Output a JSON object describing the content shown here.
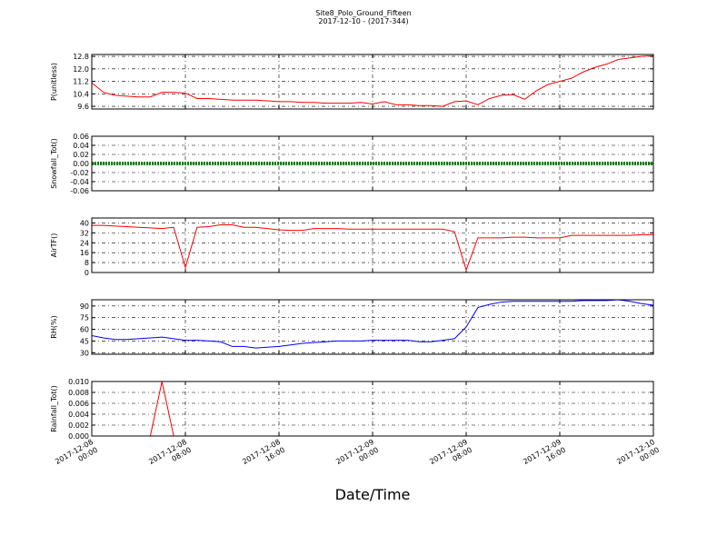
{
  "chart_data": [
    {
      "type": "line",
      "title": "Site8_Polo_Ground_Fifteen",
      "subtitle": "2017-12-10 - (2017-344)",
      "ylabel": "P(unitless)",
      "color": "#ff0000",
      "x": [
        "2017-12-08 00:00",
        "2017-12-08 01:00",
        "2017-12-08 02:00",
        "2017-12-08 03:00",
        "2017-12-08 04:00",
        "2017-12-08 05:00",
        "2017-12-08 06:00",
        "2017-12-08 07:00",
        "2017-12-08 08:00",
        "2017-12-08 09:00",
        "2017-12-08 10:00",
        "2017-12-08 11:00",
        "2017-12-08 12:00",
        "2017-12-08 13:00",
        "2017-12-08 14:00",
        "2017-12-08 15:00",
        "2017-12-08 16:00",
        "2017-12-08 17:00",
        "2017-12-08 18:00",
        "2017-12-08 19:00",
        "2017-12-08 20:00",
        "2017-12-08 21:00",
        "2017-12-08 22:00",
        "2017-12-08 23:00",
        "2017-12-09 00:00",
        "2017-12-09 01:00",
        "2017-12-09 02:00",
        "2017-12-09 03:00",
        "2017-12-09 04:00",
        "2017-12-09 05:00",
        "2017-12-09 06:00",
        "2017-12-09 07:00",
        "2017-12-09 08:00",
        "2017-12-09 09:00",
        "2017-12-09 10:00",
        "2017-12-09 11:00",
        "2017-12-09 12:00",
        "2017-12-09 13:00",
        "2017-12-09 14:00",
        "2017-12-09 15:00",
        "2017-12-09 16:00",
        "2017-12-09 17:00",
        "2017-12-09 18:00",
        "2017-12-09 19:00",
        "2017-12-09 20:00",
        "2017-12-09 21:00",
        "2017-12-09 22:00",
        "2017-12-09 23:00",
        "2017-12-10 00:00"
      ],
      "values": [
        11.1,
        10.5,
        10.3,
        10.25,
        10.2,
        10.2,
        10.5,
        10.5,
        10.45,
        10.1,
        10.1,
        10.05,
        10.0,
        10.0,
        10.0,
        9.95,
        9.9,
        9.9,
        9.85,
        9.85,
        9.8,
        9.8,
        9.8,
        9.85,
        9.75,
        9.9,
        9.7,
        9.7,
        9.65,
        9.65,
        9.6,
        9.9,
        9.95,
        9.7,
        10.1,
        10.3,
        10.35,
        10.05,
        10.6,
        11.0,
        11.2,
        11.4,
        11.8,
        12.1,
        12.3,
        12.6,
        12.7,
        12.8,
        12.85
      ],
      "ylim": [
        9.43,
        12.92
      ],
      "yticks": [
        9.6,
        10.4,
        11.2,
        {
          "value": 12,
          "label": "12.0"
        },
        12.8
      ],
      "grid": true
    },
    {
      "type": "line",
      "ylabel": "Snowfall_Tot()",
      "color": "#008000",
      "x": [
        "2017-12-08 00:00",
        "2017-12-08 01:00",
        "2017-12-08 02:00",
        "2017-12-08 03:00",
        "2017-12-08 04:00",
        "2017-12-08 05:00",
        "2017-12-08 06:00",
        "2017-12-08 07:00",
        "2017-12-08 08:00",
        "2017-12-08 09:00",
        "2017-12-08 10:00",
        "2017-12-08 11:00",
        "2017-12-08 12:00",
        "2017-12-08 13:00",
        "2017-12-08 14:00",
        "2017-12-08 15:00",
        "2017-12-08 16:00",
        "2017-12-08 17:00",
        "2017-12-08 18:00",
        "2017-12-08 19:00",
        "2017-12-08 20:00",
        "2017-12-08 21:00",
        "2017-12-08 22:00",
        "2017-12-08 23:00",
        "2017-12-09 00:00",
        "2017-12-09 01:00",
        "2017-12-09 02:00",
        "2017-12-09 03:00",
        "2017-12-09 04:00",
        "2017-12-09 05:00",
        "2017-12-09 06:00",
        "2017-12-09 07:00",
        "2017-12-09 08:00",
        "2017-12-09 09:00",
        "2017-12-09 10:00",
        "2017-12-09 11:00",
        "2017-12-09 12:00",
        "2017-12-09 13:00",
        "2017-12-09 14:00",
        "2017-12-09 15:00",
        "2017-12-09 16:00",
        "2017-12-09 17:00",
        "2017-12-09 18:00",
        "2017-12-09 19:00",
        "2017-12-09 20:00",
        "2017-12-09 21:00",
        "2017-12-09 22:00",
        "2017-12-09 23:00",
        "2017-12-10 00:00"
      ],
      "values": [
        0,
        0,
        0,
        0,
        0,
        0,
        0,
        0,
        0,
        0,
        0,
        0,
        0,
        0,
        0,
        0,
        0,
        0,
        0,
        0,
        0,
        0,
        0,
        0,
        0,
        0,
        0,
        0,
        0,
        0,
        0,
        0,
        0,
        0,
        0,
        0,
        0,
        0,
        0,
        0,
        0,
        0,
        0,
        0,
        0,
        0,
        0,
        0,
        0
      ],
      "ylim": [
        -0.06,
        0.06
      ],
      "yticks": [
        -0.06,
        -0.04,
        -0.02,
        {
          "value": 0,
          "label": "0.00"
        },
        0.02,
        0.04,
        0.06
      ],
      "grid": true
    },
    {
      "type": "line",
      "ylabel": "AirTF()",
      "color": "#ff0000",
      "x": [
        "2017-12-08 00:00",
        "2017-12-08 01:00",
        "2017-12-08 02:00",
        "2017-12-08 03:00",
        "2017-12-08 04:00",
        "2017-12-08 05:00",
        "2017-12-08 06:00",
        "2017-12-08 07:00",
        "2017-12-08 08:00",
        "2017-12-08 09:00",
        "2017-12-08 10:00",
        "2017-12-08 11:00",
        "2017-12-08 12:00",
        "2017-12-08 13:00",
        "2017-12-08 14:00",
        "2017-12-08 15:00",
        "2017-12-08 16:00",
        "2017-12-08 17:00",
        "2017-12-08 18:00",
        "2017-12-08 19:00",
        "2017-12-08 20:00",
        "2017-12-08 21:00",
        "2017-12-08 22:00",
        "2017-12-08 23:00",
        "2017-12-09 00:00",
        "2017-12-09 01:00",
        "2017-12-09 02:00",
        "2017-12-09 03:00",
        "2017-12-09 04:00",
        "2017-12-09 05:00",
        "2017-12-09 06:00",
        "2017-12-09 07:00",
        "2017-12-09 08:00",
        "2017-12-09 09:00",
        "2017-12-09 10:00",
        "2017-12-09 11:00",
        "2017-12-09 12:00",
        "2017-12-09 13:00",
        "2017-12-09 14:00",
        "2017-12-09 15:00",
        "2017-12-09 16:00",
        "2017-12-09 17:00",
        "2017-12-09 18:00",
        "2017-12-09 19:00",
        "2017-12-09 20:00",
        "2017-12-09 21:00",
        "2017-12-09 22:00",
        "2017-12-09 23:00",
        "2017-12-10 00:00"
      ],
      "values": [
        38,
        38,
        37.5,
        37,
        36.5,
        36,
        35.5,
        36.5,
        4,
        36.5,
        37,
        38.5,
        38.5,
        36.5,
        36.5,
        35.5,
        34.5,
        34,
        34,
        35.5,
        35.5,
        35.5,
        35,
        35,
        35,
        35,
        35,
        35,
        35,
        35,
        35,
        33,
        2,
        28,
        28,
        28,
        28.5,
        28.5,
        28,
        28,
        28,
        30,
        30,
        30,
        30,
        30,
        30,
        30.5,
        30.5
      ],
      "ylim": [
        0,
        44
      ],
      "yticks": [
        0,
        8,
        16,
        24,
        32,
        40
      ],
      "grid": true
    },
    {
      "type": "line",
      "ylabel": "RH(%)",
      "color": "#0000ff",
      "x": [
        "2017-12-08 00:00",
        "2017-12-08 01:00",
        "2017-12-08 02:00",
        "2017-12-08 03:00",
        "2017-12-08 04:00",
        "2017-12-08 05:00",
        "2017-12-08 06:00",
        "2017-12-08 07:00",
        "2017-12-08 08:00",
        "2017-12-08 09:00",
        "2017-12-08 10:00",
        "2017-12-08 11:00",
        "2017-12-08 12:00",
        "2017-12-08 13:00",
        "2017-12-08 14:00",
        "2017-12-08 15:00",
        "2017-12-08 16:00",
        "2017-12-08 17:00",
        "2017-12-08 18:00",
        "2017-12-08 19:00",
        "2017-12-08 20:00",
        "2017-12-08 21:00",
        "2017-12-08 22:00",
        "2017-12-08 23:00",
        "2017-12-09 00:00",
        "2017-12-09 01:00",
        "2017-12-09 02:00",
        "2017-12-09 03:00",
        "2017-12-09 04:00",
        "2017-12-09 05:00",
        "2017-12-09 06:00",
        "2017-12-09 07:00",
        "2017-12-09 08:00",
        "2017-12-09 09:00",
        "2017-12-09 10:00",
        "2017-12-09 11:00",
        "2017-12-09 12:00",
        "2017-12-09 13:00",
        "2017-12-09 14:00",
        "2017-12-09 15:00",
        "2017-12-09 16:00",
        "2017-12-09 17:00",
        "2017-12-09 18:00",
        "2017-12-09 19:00",
        "2017-12-09 20:00",
        "2017-12-09 21:00",
        "2017-12-09 22:00",
        "2017-12-09 23:00",
        "2017-12-10 00:00"
      ],
      "values": [
        52,
        49,
        47,
        47,
        48,
        49,
        50,
        48,
        46,
        46,
        45,
        44,
        38,
        38,
        36,
        37,
        38,
        40,
        42,
        43,
        44,
        45,
        45,
        45,
        46,
        46,
        46,
        46,
        44,
        44,
        46,
        48,
        63,
        88,
        92,
        95,
        96,
        96,
        96,
        96,
        96,
        96,
        97,
        97,
        97,
        98,
        96,
        93,
        91
      ],
      "ylim": [
        28,
        98
      ],
      "yticks": [
        30,
        45,
        60,
        75,
        90
      ],
      "grid": true
    },
    {
      "type": "line",
      "ylabel": "Rainfall_Tot()",
      "xlabel": "Date/Time",
      "color": "#ff0000",
      "x": [
        "2017-12-08 00:00",
        "2017-12-08 01:00",
        "2017-12-08 02:00",
        "2017-12-08 03:00",
        "2017-12-08 04:00",
        "2017-12-08 05:00",
        "2017-12-08 06:00",
        "2017-12-08 07:00",
        "2017-12-08 08:00",
        "2017-12-08 09:00",
        "2017-12-08 10:00",
        "2017-12-08 11:00",
        "2017-12-08 12:00",
        "2017-12-08 13:00",
        "2017-12-08 14:00",
        "2017-12-08 15:00",
        "2017-12-08 16:00",
        "2017-12-08 17:00",
        "2017-12-08 18:00",
        "2017-12-08 19:00",
        "2017-12-08 20:00",
        "2017-12-08 21:00",
        "2017-12-08 22:00",
        "2017-12-08 23:00",
        "2017-12-09 00:00",
        "2017-12-09 01:00",
        "2017-12-09 02:00",
        "2017-12-09 03:00",
        "2017-12-09 04:00",
        "2017-12-09 05:00",
        "2017-12-09 06:00",
        "2017-12-09 07:00",
        "2017-12-09 08:00",
        "2017-12-09 09:00",
        "2017-12-09 10:00",
        "2017-12-09 11:00",
        "2017-12-09 12:00",
        "2017-12-09 13:00",
        "2017-12-09 14:00",
        "2017-12-09 15:00",
        "2017-12-09 16:00",
        "2017-12-09 17:00",
        "2017-12-09 18:00",
        "2017-12-09 19:00",
        "2017-12-09 20:00",
        "2017-12-09 21:00",
        "2017-12-09 22:00",
        "2017-12-09 23:00",
        "2017-12-10 00:00"
      ],
      "values": [
        0,
        0,
        0,
        0,
        0,
        0,
        0.01,
        0,
        0,
        0,
        0,
        0,
        0,
        0,
        0,
        0,
        0,
        0,
        0,
        0,
        0,
        0,
        0,
        0,
        0,
        0,
        0,
        0,
        0,
        0,
        0,
        0,
        0,
        0,
        0,
        0,
        0,
        0,
        0,
        0,
        0,
        0,
        0,
        0,
        0,
        0,
        0,
        0,
        0
      ],
      "ylim": [
        0,
        0.01
      ],
      "yticks": [
        {
          "value": 0,
          "label": "0.000"
        },
        0.002,
        0.004,
        0.006,
        0.008,
        {
          "value": 0.01,
          "label": "0.010"
        }
      ],
      "grid": true,
      "xlim": [
        "2017-12-08 00:00",
        "2017-12-10 00:00"
      ],
      "xticks": [
        "2017-12-08 00:00",
        "2017-12-08 08:00",
        "2017-12-08 16:00",
        "2017-12-09 00:00",
        "2017-12-09 08:00",
        "2017-12-09 16:00",
        "2017-12-10 00:00"
      ]
    }
  ]
}
